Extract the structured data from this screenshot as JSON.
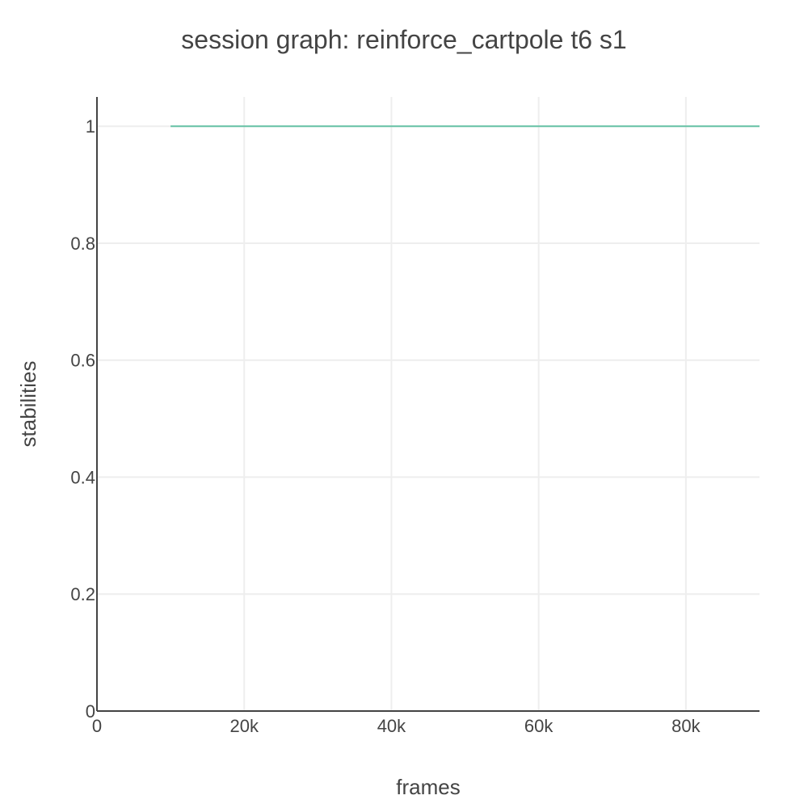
{
  "chart_data": {
    "type": "line",
    "title": "session graph: reinforce_cartpole t6 s1",
    "xlabel": "frames",
    "ylabel": "stabilities",
    "xlim": [
      0,
      90000
    ],
    "ylim": [
      0,
      1.05
    ],
    "x_ticks": [
      {
        "value": 0,
        "label": "0"
      },
      {
        "value": 20000,
        "label": "20k"
      },
      {
        "value": 40000,
        "label": "40k"
      },
      {
        "value": 60000,
        "label": "60k"
      },
      {
        "value": 80000,
        "label": "80k"
      }
    ],
    "y_ticks": [
      {
        "value": 0,
        "label": "0"
      },
      {
        "value": 0.2,
        "label": "0.2"
      },
      {
        "value": 0.4,
        "label": "0.4"
      },
      {
        "value": 0.6,
        "label": "0.6"
      },
      {
        "value": 0.8,
        "label": "0.8"
      },
      {
        "value": 1,
        "label": "1"
      }
    ],
    "grid": true,
    "legend": "none",
    "series": [
      {
        "color": "#66c2a5",
        "x": [
          10000,
          20000,
          30000,
          40000,
          50000,
          60000,
          70000,
          80000,
          90000
        ],
        "y": [
          1,
          1,
          1,
          1,
          1,
          1,
          1,
          1,
          1
        ]
      }
    ]
  }
}
